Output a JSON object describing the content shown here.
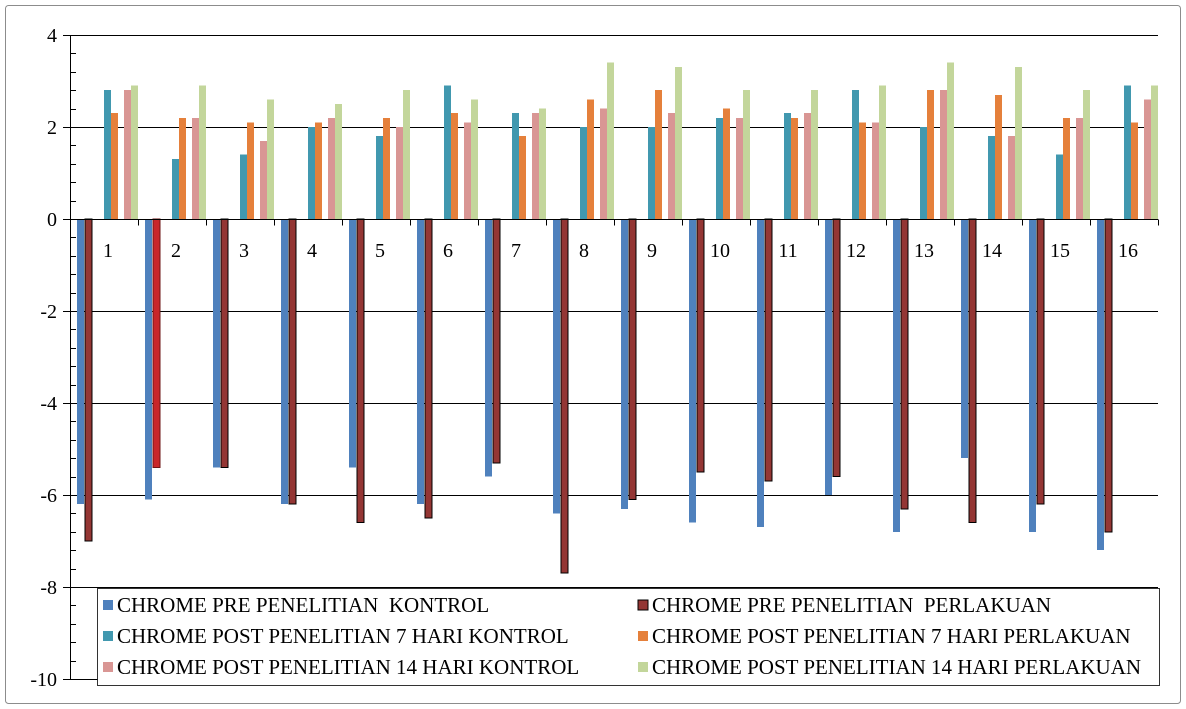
{
  "chart_data": {
    "type": "bar",
    "categories": [
      "1",
      "2",
      "3",
      "4",
      "5",
      "6",
      "7",
      "8",
      "9",
      "10",
      "11",
      "12",
      "13",
      "14",
      "15",
      "16"
    ],
    "ylim": [
      -10,
      4
    ],
    "y_major_unit": 2,
    "y_minor_unit": 0.4,
    "y_ticks": [
      4,
      2,
      0,
      -2,
      -4,
      -6,
      -8,
      -10
    ],
    "grid": {
      "y_major": true,
      "x": false
    },
    "legend_position": "bottom",
    "series": [
      {
        "name": "CHROME PRE PENELITIAN  KONTROL",
        "color": "#4F81BD",
        "values": [
          -6.2,
          -6.1,
          -5.4,
          -6.2,
          -5.4,
          -6.2,
          -5.6,
          -6.4,
          -6.3,
          -6.6,
          -6.7,
          -6.0,
          -6.8,
          -5.2,
          -6.8,
          -7.2
        ]
      },
      {
        "name": "CHROME PRE PENELITIAN  PERLAKUAN",
        "color": "#943634",
        "outline": "#000000",
        "values": [
          -7.0,
          -5.4,
          -5.4,
          -6.2,
          -6.6,
          -6.5,
          -5.3,
          -7.7,
          -6.1,
          -5.5,
          -5.7,
          -5.6,
          -6.3,
          -6.6,
          -6.2,
          -6.8
        ]
      },
      {
        "name": "CHROME POST PENELITIAN 7 HARI KONTROL",
        "color": "#4198AF",
        "values": [
          2.8,
          1.3,
          1.4,
          2.0,
          1.8,
          2.9,
          2.3,
          2.0,
          2.0,
          2.2,
          2.3,
          2.8,
          2.0,
          1.8,
          1.4,
          2.9
        ]
      },
      {
        "name": "CHROME POST PENELITIAN 7 HARI PERLAKUAN",
        "color": "#E5803B",
        "values": [
          2.3,
          2.2,
          2.1,
          2.1,
          2.2,
          2.3,
          1.8,
          2.6,
          2.8,
          2.4,
          2.2,
          2.1,
          2.8,
          2.7,
          2.2,
          2.1
        ]
      },
      {
        "name": "CHROME POST PENELITIAN 14 HARI KONTROL",
        "color": "#D99694",
        "values": [
          2.8,
          2.2,
          1.7,
          2.2,
          2.0,
          2.1,
          2.3,
          2.4,
          2.3,
          2.2,
          2.3,
          2.1,
          2.8,
          1.8,
          2.2,
          2.6
        ]
      },
      {
        "name": "CHROME POST PENELITIAN 14 HARI PERLAKUAN",
        "color": "#C3D69B",
        "values": [
          2.9,
          2.9,
          2.6,
          2.5,
          2.8,
          2.6,
          2.4,
          3.4,
          3.3,
          2.8,
          2.8,
          2.9,
          3.4,
          3.3,
          2.8,
          2.9
        ]
      }
    ],
    "highlight": [
      {
        "series_index": 1,
        "category_index": 1,
        "color": "#C9262A",
        "outline": "#6E1416"
      }
    ]
  }
}
